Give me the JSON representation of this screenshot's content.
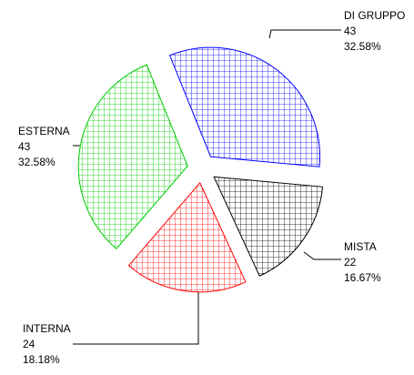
{
  "chart_data": {
    "type": "pie",
    "categories": [
      "DI GRUPPO",
      "MISTA",
      "INTERNA",
      "ESTERNA"
    ],
    "values": [
      43,
      22,
      24,
      43
    ],
    "percent_labels": [
      "32.58%",
      "16.67%",
      "18.18%",
      "32.58%"
    ],
    "colors": [
      "#0000ff",
      "#000000",
      "#ff0000",
      "#00cc00"
    ],
    "hatch": "crosshatch",
    "exploded": true
  }
}
